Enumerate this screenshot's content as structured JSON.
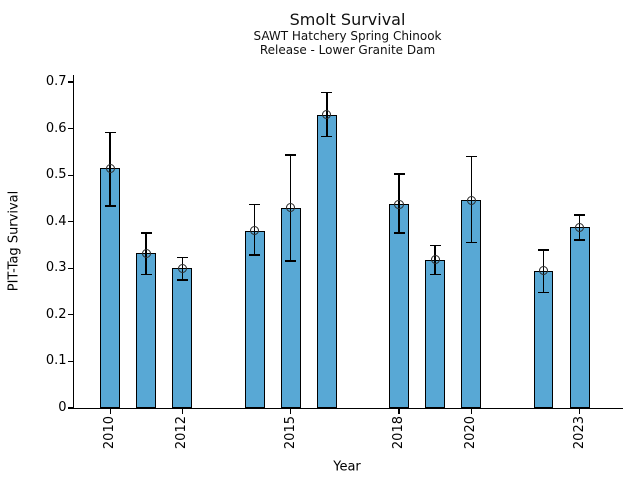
{
  "header": {
    "title": "Smolt Survival",
    "subtitle_line1": "SAWT Hatchery Spring Chinook",
    "subtitle_line2": "Release - Lower Granite Dam"
  },
  "chart_data": {
    "type": "bar",
    "title": "Smolt Survival",
    "subtitle": [
      "SAWT Hatchery Spring Chinook",
      "Release - Lower Granite Dam"
    ],
    "xlabel": "Year",
    "ylabel": "PIT-Tag Survival",
    "xlim": [
      2009.0,
      2024.2
    ],
    "ylim": [
      0,
      0.715
    ],
    "yticks": [
      0,
      0.1,
      0.2,
      0.3,
      0.4,
      0.5,
      0.6,
      0.7
    ],
    "xticks": [
      2010,
      2012,
      2015,
      2018,
      2020,
      2023
    ],
    "grid": false,
    "legend": false,
    "bar_color": "#58a8d5",
    "bar_edge_color": "#000000",
    "error_color": "#000000",
    "marker_style": "open-circle",
    "bar_width_years": 0.55,
    "points": [
      {
        "year": 2010,
        "value": 0.515,
        "ci_low": 0.434,
        "ci_high": 0.592
      },
      {
        "year": 2011,
        "value": 0.332,
        "ci_low": 0.287,
        "ci_high": 0.376
      },
      {
        "year": 2012,
        "value": 0.3,
        "ci_low": 0.275,
        "ci_high": 0.323
      },
      {
        "year": 2014,
        "value": 0.381,
        "ci_low": 0.329,
        "ci_high": 0.437
      },
      {
        "year": 2015,
        "value": 0.43,
        "ci_low": 0.316,
        "ci_high": 0.543
      },
      {
        "year": 2016,
        "value": 0.63,
        "ci_low": 0.583,
        "ci_high": 0.677
      },
      {
        "year": 2018,
        "value": 0.437,
        "ci_low": 0.376,
        "ci_high": 0.502
      },
      {
        "year": 2019,
        "value": 0.318,
        "ci_low": 0.287,
        "ci_high": 0.349
      },
      {
        "year": 2020,
        "value": 0.446,
        "ci_low": 0.355,
        "ci_high": 0.54
      },
      {
        "year": 2022,
        "value": 0.295,
        "ci_low": 0.248,
        "ci_high": 0.339
      },
      {
        "year": 2023,
        "value": 0.388,
        "ci_low": 0.361,
        "ci_high": 0.414
      }
    ]
  }
}
